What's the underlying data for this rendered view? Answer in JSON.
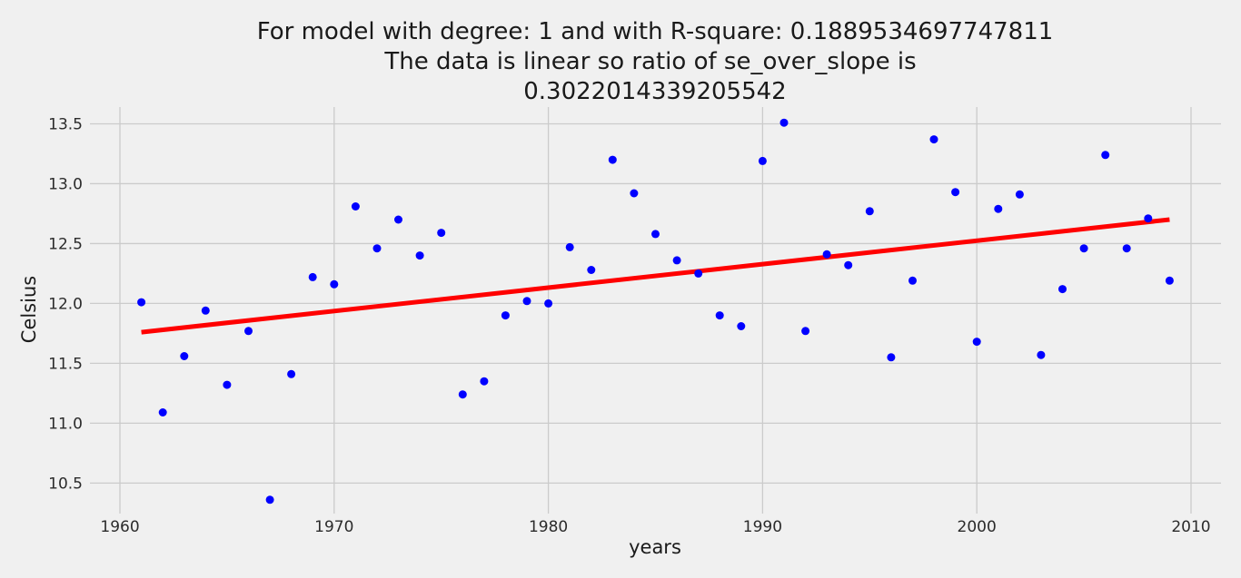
{
  "chart_data": {
    "type": "scatter",
    "title_lines": [
      "For model with degree: 1 and with R-square: 0.1889534697747811",
      "The data is linear so ratio of se_over_slope is",
      "0.3022014339205542"
    ],
    "xlabel": "years",
    "ylabel": "Celsius",
    "xlim": [
      1958.6,
      2011.4
    ],
    "ylim": [
      10.245,
      13.64
    ],
    "xticks": [
      1960,
      1970,
      1980,
      1990,
      2000,
      2010
    ],
    "yticks": [
      10.5,
      11.0,
      11.5,
      12.0,
      12.5,
      13.0,
      13.5
    ],
    "ytick_labels": [
      "10.5",
      "11.0",
      "11.5",
      "12.0",
      "12.5",
      "13.0",
      "13.5"
    ],
    "grid": true,
    "series": [
      {
        "kind": "scatter",
        "color": "#0000ff",
        "x": [
          1961,
          1962,
          1963,
          1964,
          1965,
          1966,
          1967,
          1968,
          1969,
          1970,
          1971,
          1972,
          1973,
          1974,
          1975,
          1976,
          1977,
          1978,
          1979,
          1980,
          1981,
          1982,
          1983,
          1984,
          1985,
          1986,
          1987,
          1988,
          1989,
          1990,
          1991,
          1992,
          1993,
          1994,
          1995,
          1996,
          1997,
          1998,
          1999,
          2000,
          2001,
          2002,
          2003,
          2004,
          2005,
          2006,
          2007,
          2008,
          2009
        ],
        "y": [
          12.01,
          11.09,
          11.56,
          11.94,
          11.32,
          11.77,
          10.36,
          11.41,
          12.22,
          12.16,
          12.81,
          12.46,
          12.7,
          12.4,
          12.59,
          11.24,
          11.35,
          11.9,
          12.02,
          12.0,
          12.47,
          12.28,
          13.2,
          12.92,
          12.58,
          12.36,
          12.25,
          11.9,
          11.81,
          13.19,
          13.51,
          11.77,
          12.41,
          12.32,
          12.77,
          11.55,
          12.19,
          13.37,
          12.93,
          11.68,
          12.79,
          12.91,
          11.57,
          12.12,
          12.46,
          13.24,
          12.46,
          12.71,
          12.19
        ]
      },
      {
        "kind": "line",
        "color": "#ff0000",
        "x": [
          1961,
          2009
        ],
        "y": [
          11.76,
          12.7
        ]
      }
    ]
  }
}
